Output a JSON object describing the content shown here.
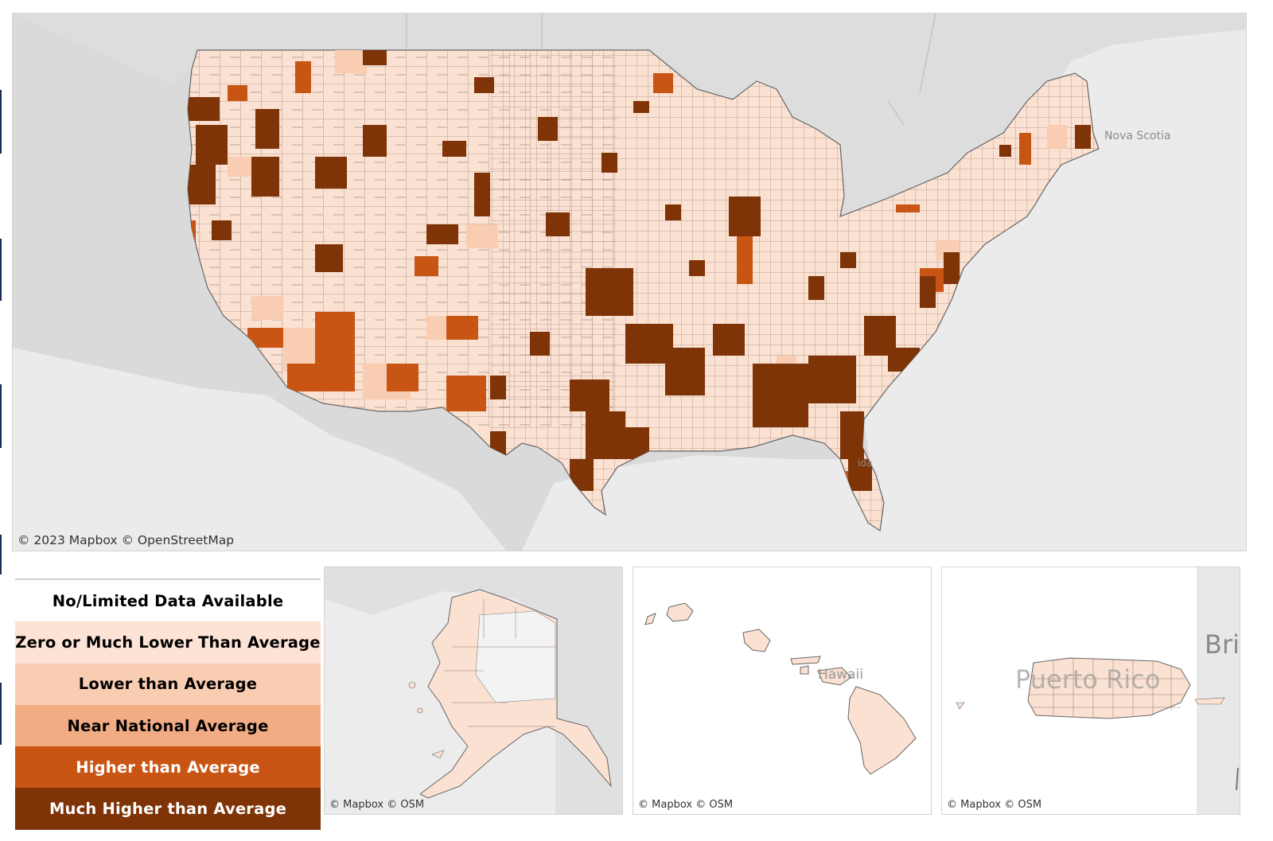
{
  "main_map": {
    "attribution": "© 2023 Mapbox  © OpenStreetMap",
    "labels": {
      "nova_scotia": "Nova Scotia",
      "florida_partial": "ida"
    }
  },
  "insets": [
    {
      "region": "Alaska",
      "attribution": "© Mapbox  © OSM"
    },
    {
      "region": "Hawaii",
      "attribution": "© Mapbox  © OSM",
      "label": "Hawaii"
    },
    {
      "region": "Puerto Rico",
      "attribution": "© Mapbox  © OSM",
      "label": "Puerto Rico",
      "edge_label": "Bri"
    }
  ],
  "legend": [
    {
      "label": "No/Limited Data Available",
      "color": "#ffffff",
      "text_color": "#000000"
    },
    {
      "label": "Zero or Much Lower Than Average",
      "color": "#fde3d5",
      "text_color": "#000000"
    },
    {
      "label": "Lower than Average",
      "color": "#f9cdb1",
      "text_color": "#000000"
    },
    {
      "label": "Near National Average",
      "color": "#f2ac84",
      "text_color": "#000000"
    },
    {
      "label": "Higher than Average",
      "color": "#c85514",
      "text_color": "#ffffff"
    },
    {
      "label": "Much Higher than Average",
      "color": "#7e3407",
      "text_color": "#ffffff"
    }
  ],
  "colors": {
    "land_background": "#dcdcdc",
    "water": "#ececec",
    "county_base": "#fbe1d1",
    "county_border": "#6b5a54"
  }
}
